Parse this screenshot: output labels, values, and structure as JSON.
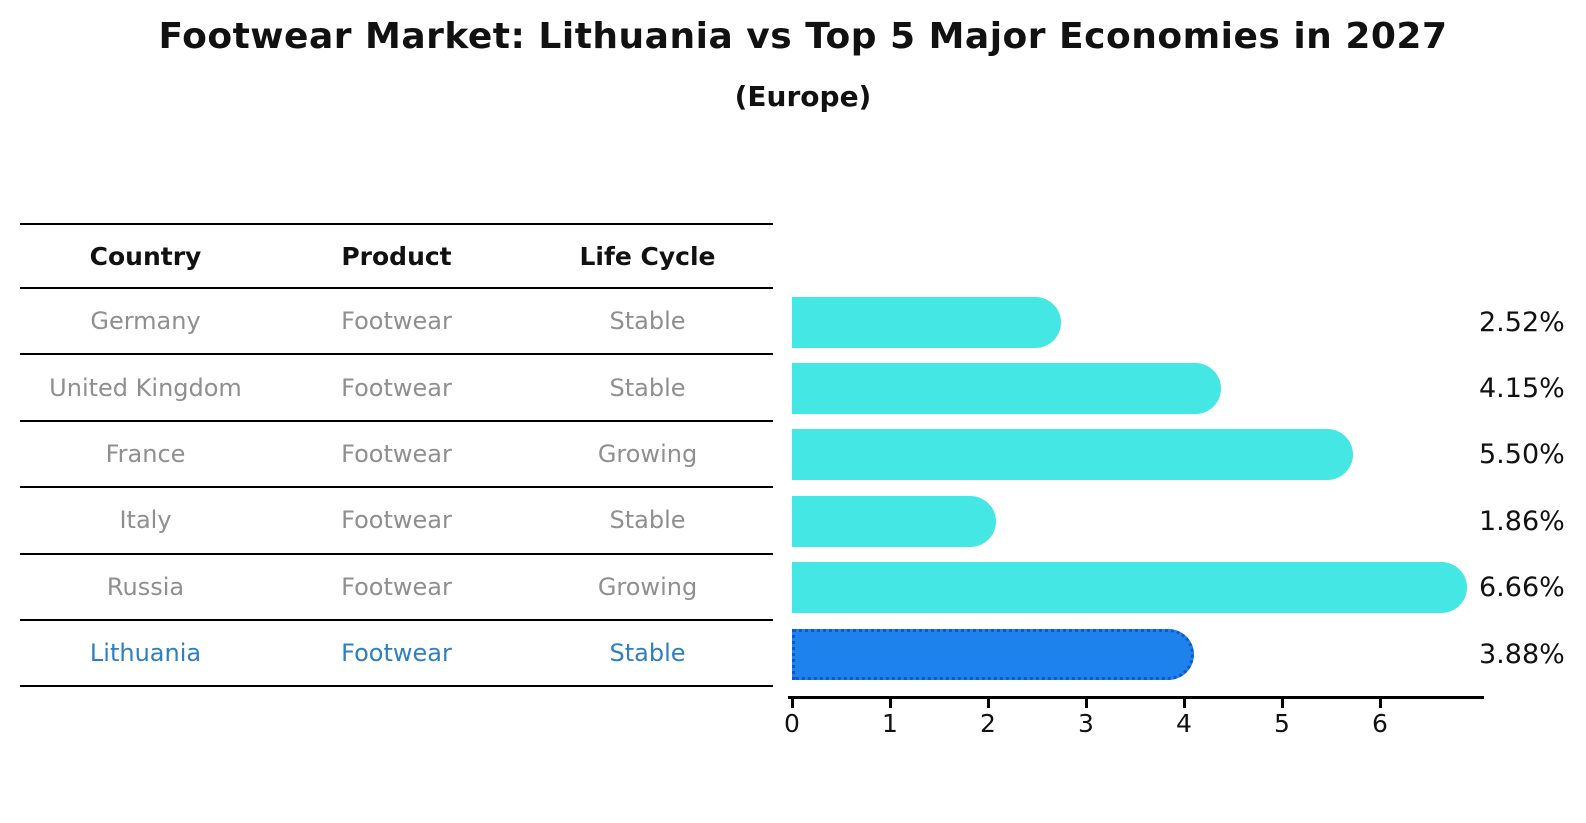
{
  "title": "Footwear Market: Lithuania vs Top 5 Major Economies in 2027",
  "subtitle": "(Europe)",
  "table": {
    "headers": [
      "Country",
      "Product",
      "Life Cycle"
    ],
    "rows": [
      {
        "country": "Germany",
        "product": "Footwear",
        "life_cycle": "Stable",
        "highlight": false
      },
      {
        "country": "United Kingdom",
        "product": "Footwear",
        "life_cycle": "Stable",
        "highlight": false
      },
      {
        "country": "France",
        "product": "Footwear",
        "life_cycle": "Growing",
        "highlight": false
      },
      {
        "country": "Italy",
        "product": "Footwear",
        "life_cycle": "Stable",
        "highlight": false
      },
      {
        "country": "Russia",
        "product": "Footwear",
        "life_cycle": "Growing",
        "highlight": false
      },
      {
        "country": "Lithuania",
        "product": "Footwear",
        "life_cycle": "Stable",
        "highlight": true
      }
    ]
  },
  "chart_data": {
    "type": "bar",
    "orientation": "horizontal",
    "title": "Footwear Market: Lithuania vs Top 5 Major Economies in 2027 (Europe)",
    "categories": [
      "Germany",
      "United Kingdom",
      "France",
      "Italy",
      "Russia",
      "Lithuania"
    ],
    "values": [
      2.52,
      4.15,
      5.5,
      1.86,
      6.66,
      3.88
    ],
    "value_labels": [
      "2.52%",
      "4.15%",
      "5.50%",
      "1.86%",
      "6.66%",
      "3.88%"
    ],
    "unit": "percent",
    "x_ticks": [
      "0",
      "1",
      "2",
      "3",
      "4",
      "5",
      "6"
    ],
    "xlim": [
      0,
      7
    ],
    "grid": false,
    "legend": "none",
    "highlight_index": 5
  },
  "colors": {
    "bar": "#45E7E4",
    "highlight_bar": "#1E82EC",
    "highlight_bar_border": "#1257C8",
    "highlight_text": "#2E7FC2",
    "row_text": "#8F8F8F",
    "axis": "#000000"
  }
}
